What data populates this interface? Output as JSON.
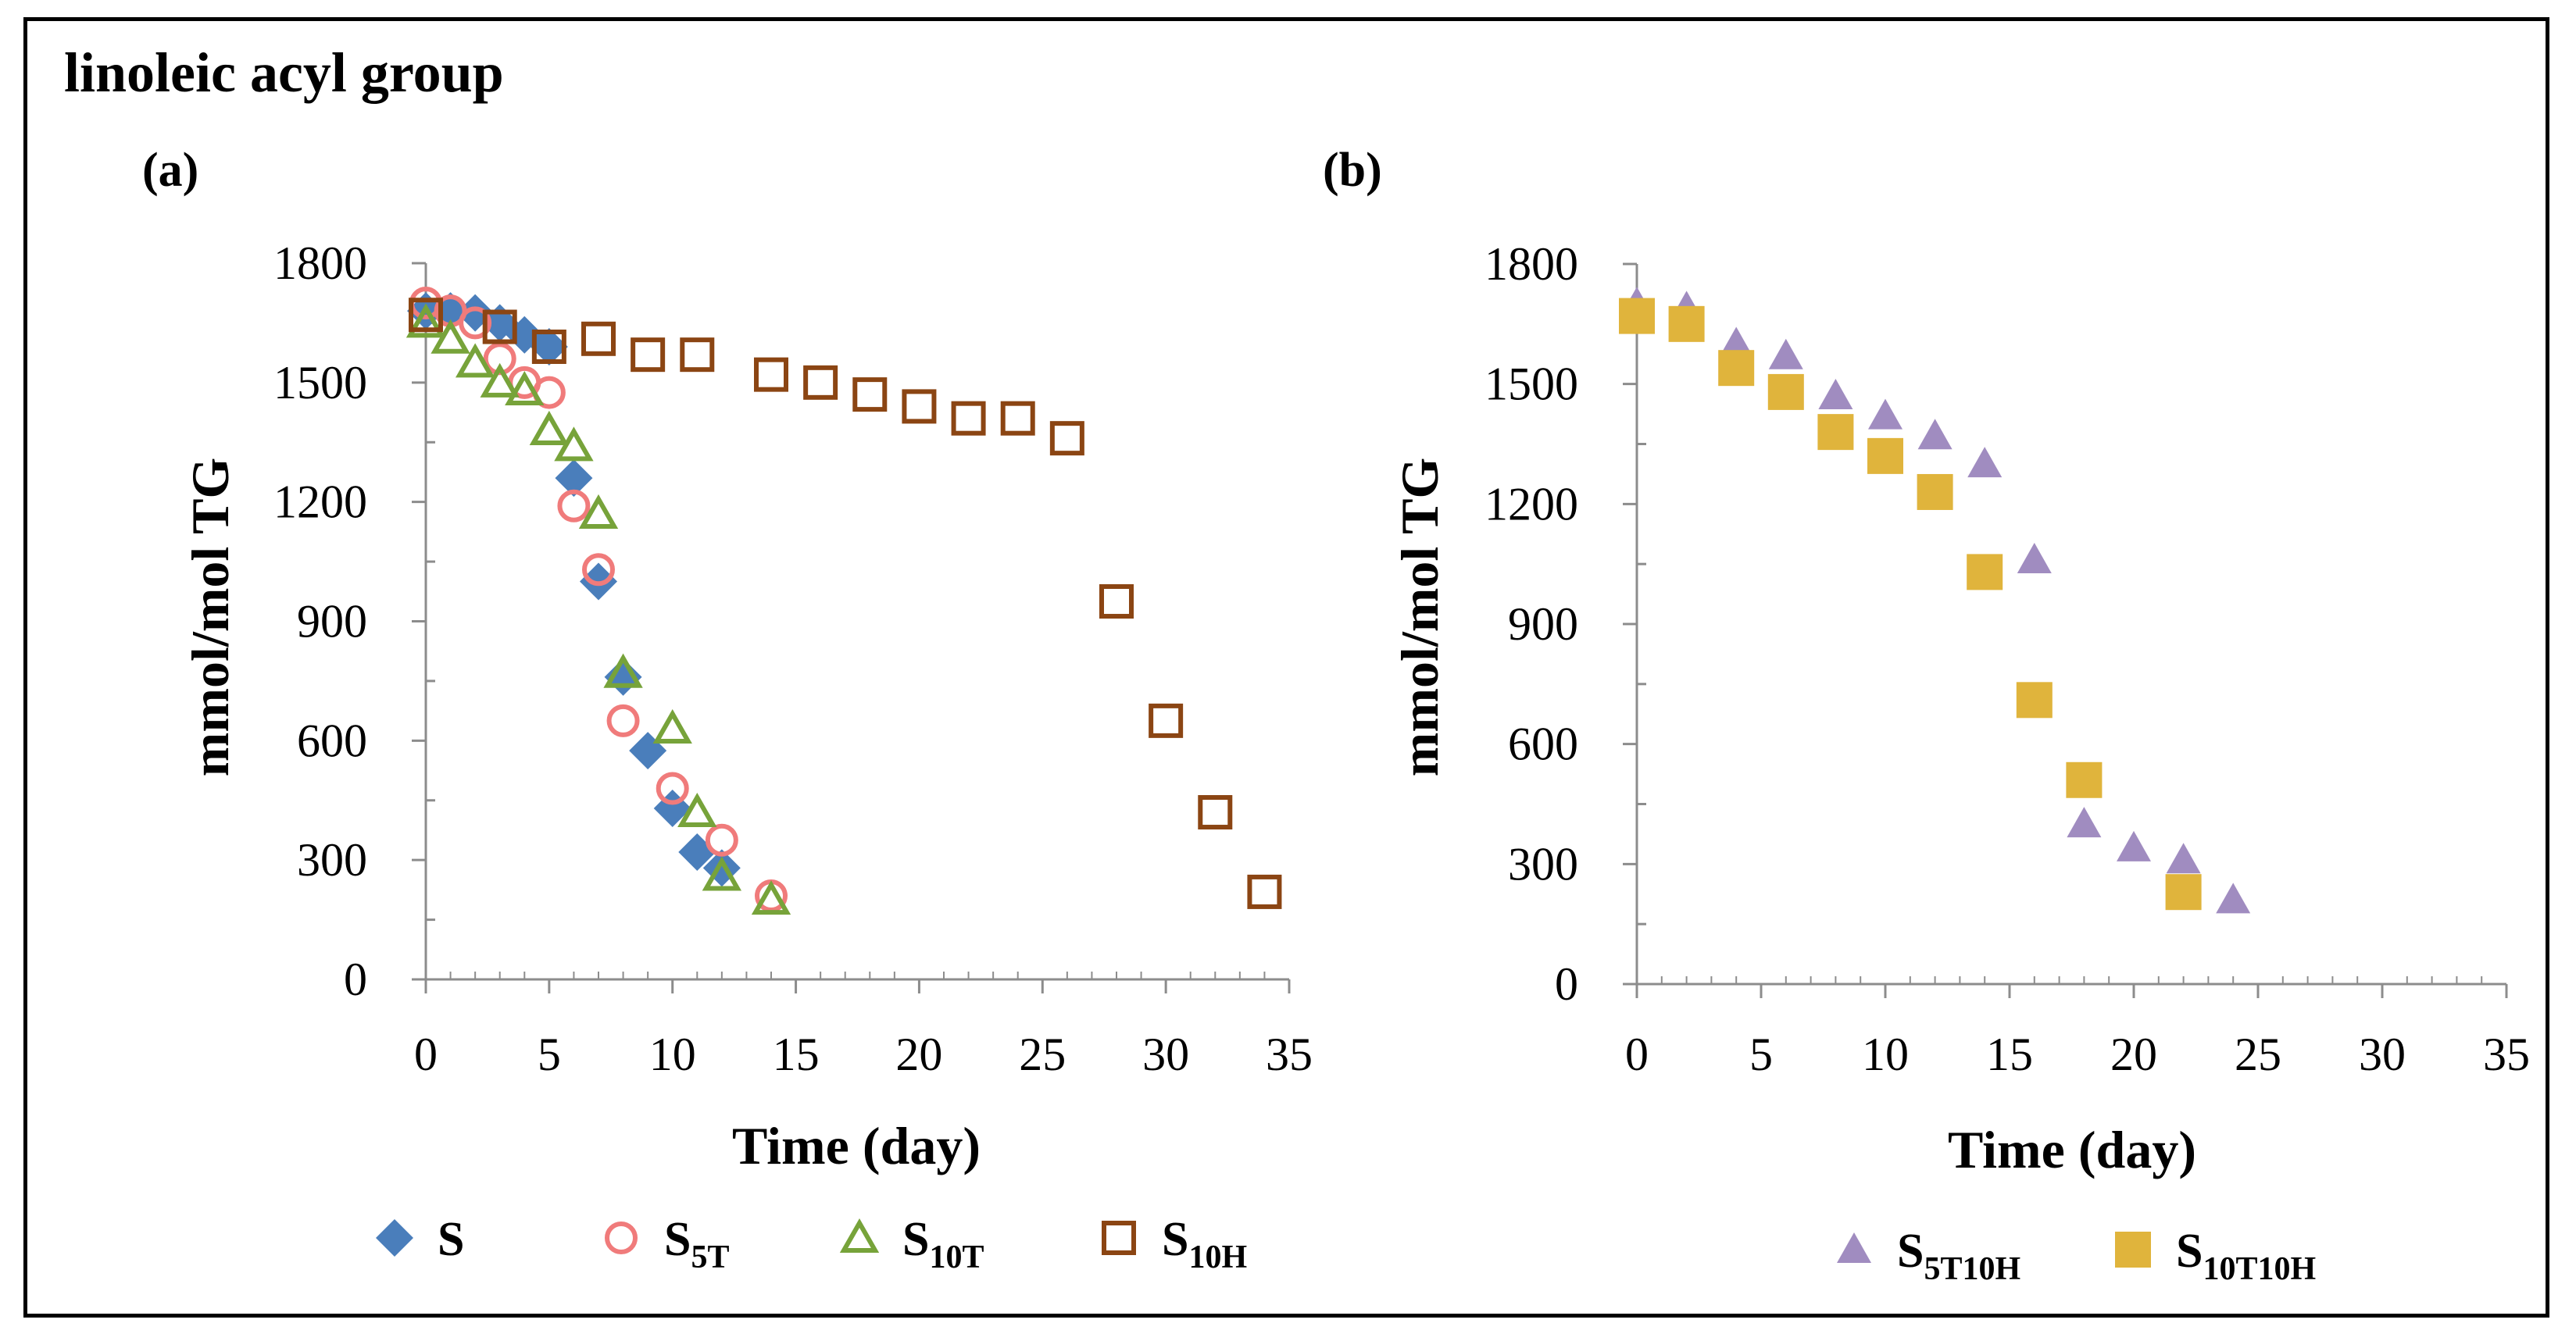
{
  "figure_title": "linoleic acyl group",
  "chart_data": [
    {
      "type": "scatter",
      "panel_label": "(a)",
      "xlabel": "Time (day)",
      "ylabel": "mmol/mol TG",
      "xlim": [
        0,
        35
      ],
      "ylim": [
        0,
        1800
      ],
      "xticks": [
        0,
        5,
        10,
        15,
        20,
        25,
        30,
        35
      ],
      "yticks": [
        0,
        300,
        600,
        900,
        1200,
        1500,
        1800
      ],
      "series": [
        {
          "name": "S",
          "sub": "",
          "marker": "diamond",
          "color": "#4a7ebb",
          "x": [
            0,
            1,
            2,
            3,
            4,
            5,
            6,
            7,
            8,
            9,
            10,
            11,
            12
          ],
          "y": [
            1680,
            1680,
            1675,
            1650,
            1620,
            1590,
            1260,
            1000,
            760,
            575,
            430,
            320,
            280
          ]
        },
        {
          "name": "S",
          "sub": "5T",
          "marker": "circle",
          "color": "#f07b7b",
          "x": [
            0,
            1,
            2,
            3,
            4,
            5,
            6,
            7,
            8,
            10,
            12,
            14
          ],
          "y": [
            1700,
            1680,
            1650,
            1560,
            1500,
            1475,
            1190,
            1030,
            650,
            480,
            350,
            210
          ]
        },
        {
          "name": "S",
          "sub": "10T",
          "marker": "triangle-open",
          "color": "#77a33a",
          "x": [
            0,
            1,
            2,
            3,
            4,
            5,
            6,
            7,
            8,
            10,
            11,
            12,
            14
          ],
          "y": [
            1650,
            1610,
            1550,
            1500,
            1480,
            1380,
            1340,
            1170,
            770,
            630,
            420,
            260,
            200
          ]
        },
        {
          "name": "S",
          "sub": "10H",
          "marker": "square-open",
          "color": "#8b4513",
          "x": [
            0,
            3,
            5,
            7,
            9,
            11,
            14,
            16,
            18,
            20,
            22,
            24,
            26,
            28,
            30,
            32,
            34
          ],
          "y": [
            1670,
            1640,
            1590,
            1610,
            1570,
            1570,
            1520,
            1500,
            1470,
            1440,
            1410,
            1410,
            1360,
            950,
            650,
            420,
            220
          ]
        }
      ]
    },
    {
      "type": "scatter",
      "panel_label": "(b)",
      "xlabel": "Time (day)",
      "ylabel": "mmol/mol TG",
      "xlim": [
        0,
        35
      ],
      "ylim": [
        0,
        1800
      ],
      "xticks": [
        0,
        5,
        10,
        15,
        20,
        25,
        30,
        35
      ],
      "yticks": [
        0,
        300,
        600,
        900,
        1200,
        1500,
        1800
      ],
      "series": [
        {
          "name": "S",
          "sub": "5T10H",
          "marker": "triangle",
          "color": "#a08cc0",
          "x": [
            0,
            2,
            4,
            6,
            8,
            10,
            12,
            14,
            16,
            18,
            20,
            22,
            24
          ],
          "y": [
            1700,
            1690,
            1600,
            1570,
            1470,
            1420,
            1370,
            1300,
            1060,
            400,
            340,
            310,
            210
          ]
        },
        {
          "name": "S",
          "sub": "10T10H",
          "marker": "square",
          "color": "#e0b43c",
          "x": [
            0,
            2,
            4,
            6,
            8,
            10,
            12,
            14,
            16,
            18,
            22
          ],
          "y": [
            1670,
            1650,
            1540,
            1480,
            1380,
            1320,
            1230,
            1030,
            710,
            510,
            230
          ]
        }
      ]
    }
  ]
}
